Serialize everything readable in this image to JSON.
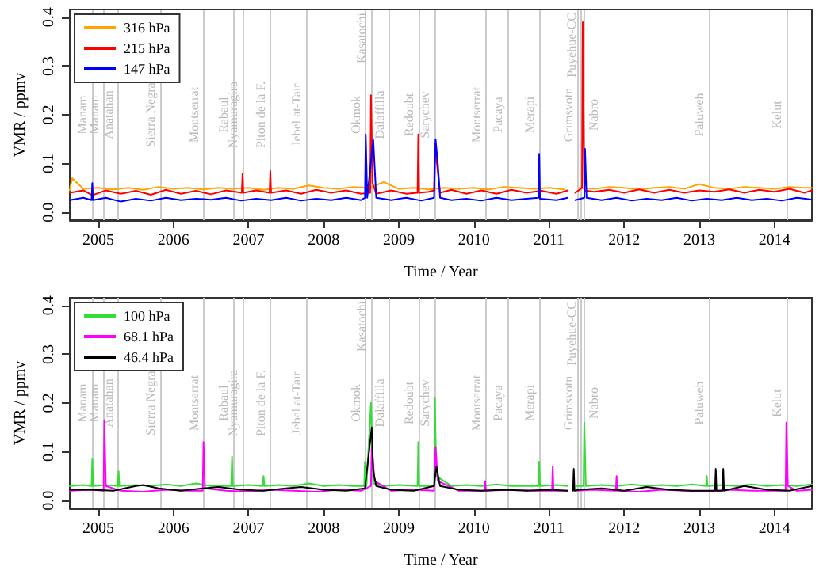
{
  "chart_data": [
    {
      "type": "line",
      "xlabel": "Time / Year",
      "ylabel": "VMR / ppmv",
      "legend": "top left",
      "xlim": [
        2004.62,
        2014.5
      ],
      "xticks": [
        2005,
        2006,
        2007,
        2008,
        2009,
        2010,
        2011,
        2012,
        2013,
        2014
      ],
      "ylim": [
        -0.016,
        0.416
      ],
      "yticks": [
        {
          "value": 0,
          "label": "0.0"
        },
        {
          "value": 0.1,
          "label": "0.1"
        },
        {
          "value": 0.2,
          "label": "0.2"
        },
        {
          "value": 0.3,
          "label": "0.3"
        },
        {
          "value": 0.4,
          "label": "0.4"
        }
      ],
      "series": [
        {
          "name": "316 hPa",
          "color": "#ffa500",
          "x": [
            2004.62,
            2004.65,
            2004.8,
            2005.0,
            2005.2,
            2005.4,
            2005.6,
            2005.8,
            2006.0,
            2006.2,
            2006.4,
            2006.6,
            2006.8,
            2007.0,
            2007.2,
            2007.4,
            2007.6,
            2007.8,
            2008.0,
            2008.2,
            2008.4,
            2008.6,
            2008.8,
            2009.0,
            2009.2,
            2009.4,
            2009.6,
            2009.8,
            2010.0,
            2010.2,
            2010.4,
            2010.6,
            2010.8,
            2011.0,
            2011.2,
            2011.3,
            2011.4,
            2011.6,
            2011.8,
            2012.0,
            2012.2,
            2012.4,
            2012.6,
            2012.8,
            2013.0,
            2013.2,
            2013.4,
            2013.6,
            2013.8,
            2014.0,
            2014.2,
            2014.4,
            2014.5
          ],
          "values": [
            0.045,
            0.07,
            0.048,
            0.05,
            0.047,
            0.05,
            0.046,
            0.052,
            0.048,
            0.05,
            0.047,
            0.05,
            0.048,
            0.05,
            0.046,
            0.05,
            0.048,
            0.055,
            0.05,
            0.048,
            0.052,
            0.05,
            0.062,
            0.048,
            0.05,
            0.047,
            0.05,
            0.048,
            0.05,
            0.047,
            0.052,
            0.05,
            0.048,
            0.05,
            0.047,
            null,
            0.05,
            0.048,
            0.052,
            0.05,
            0.047,
            0.05,
            0.052,
            0.048,
            0.058,
            0.05,
            0.048,
            0.052,
            0.05,
            0.048,
            0.052,
            0.05,
            0.05
          ]
        },
        {
          "name": "215 hPa",
          "color": "#ff0000",
          "x": [
            2004.62,
            2004.8,
            2004.92,
            2005.1,
            2005.3,
            2005.5,
            2005.7,
            2005.9,
            2006.1,
            2006.3,
            2006.5,
            2006.7,
            2006.91,
            2006.92,
            2006.93,
            2007.1,
            2007.28,
            2007.29,
            2007.3,
            2007.5,
            2007.7,
            2007.9,
            2008.1,
            2008.3,
            2008.5,
            2008.62,
            2008.63,
            2008.65,
            2008.7,
            2008.9,
            2009.1,
            2009.25,
            2009.26,
            2009.27,
            2009.4,
            2009.47,
            2009.48,
            2009.55,
            2009.7,
            2009.9,
            2010.1,
            2010.3,
            2010.5,
            2010.7,
            2010.9,
            2011.1,
            2011.25,
            2011.3,
            2011.35,
            2011.44,
            2011.45,
            2011.47,
            2011.6,
            2011.8,
            2012.0,
            2012.2,
            2012.4,
            2012.6,
            2012.8,
            2013.0,
            2013.2,
            2013.4,
            2013.6,
            2013.8,
            2014.0,
            2014.2,
            2014.4,
            2014.5
          ],
          "values": [
            0.04,
            0.045,
            0.035,
            0.045,
            0.038,
            0.044,
            0.036,
            0.046,
            0.038,
            0.044,
            0.037,
            0.045,
            0.04,
            0.08,
            0.04,
            0.045,
            0.04,
            0.085,
            0.04,
            0.045,
            0.038,
            0.046,
            0.04,
            0.045,
            0.038,
            0.04,
            0.24,
            0.06,
            0.038,
            0.045,
            0.038,
            0.04,
            0.16,
            0.04,
            0.042,
            0.045,
            0.14,
            0.04,
            0.046,
            0.038,
            0.045,
            0.038,
            0.046,
            0.04,
            0.044,
            0.038,
            0.045,
            null,
            0.04,
            0.05,
            0.39,
            0.045,
            0.042,
            0.046,
            0.04,
            0.047,
            0.04,
            0.046,
            0.04,
            0.045,
            0.042,
            0.047,
            0.04,
            0.046,
            0.042,
            0.048,
            0.04,
            0.045
          ]
        },
        {
          "name": "147 hPa",
          "color": "#0000ff",
          "x": [
            2004.62,
            2004.8,
            2004.91,
            2004.92,
            2004.93,
            2005.1,
            2005.3,
            2005.5,
            2005.7,
            2005.9,
            2006.1,
            2006.3,
            2006.5,
            2006.7,
            2006.9,
            2007.1,
            2007.3,
            2007.5,
            2007.7,
            2007.9,
            2008.1,
            2008.3,
            2008.5,
            2008.55,
            2008.56,
            2008.58,
            2008.66,
            2008.7,
            2008.9,
            2009.1,
            2009.3,
            2009.47,
            2009.49,
            2009.52,
            2009.55,
            2009.7,
            2009.9,
            2010.1,
            2010.3,
            2010.5,
            2010.7,
            2010.86,
            2010.87,
            2010.88,
            2011.1,
            2011.25,
            2011.3,
            2011.35,
            2011.47,
            2011.48,
            2011.5,
            2011.7,
            2011.9,
            2012.1,
            2012.3,
            2012.5,
            2012.7,
            2012.9,
            2013.1,
            2013.3,
            2013.5,
            2013.7,
            2013.9,
            2014.1,
            2014.3,
            2014.5
          ],
          "values": [
            0.025,
            0.03,
            0.025,
            0.06,
            0.025,
            0.03,
            0.022,
            0.028,
            0.024,
            0.03,
            0.025,
            0.028,
            0.026,
            0.03,
            0.024,
            0.028,
            0.025,
            0.03,
            0.024,
            0.028,
            0.025,
            0.03,
            0.025,
            0.03,
            0.16,
            0.03,
            0.15,
            0.03,
            0.025,
            0.03,
            0.024,
            0.03,
            0.15,
            0.1,
            0.03,
            0.025,
            0.028,
            0.024,
            0.03,
            0.025,
            0.028,
            0.03,
            0.12,
            0.028,
            0.025,
            0.03,
            null,
            0.025,
            0.03,
            0.13,
            0.03,
            0.025,
            0.03,
            0.024,
            0.028,
            0.025,
            0.03,
            0.024,
            0.028,
            0.025,
            0.03,
            0.025,
            0.028,
            0.024,
            0.03,
            0.026
          ]
        }
      ],
      "ref_lines": [
        {
          "axis": "x",
          "value": 2004.92,
          "label": "Manam",
          "color": "#cccccc"
        },
        {
          "axis": "x",
          "value": 2005.07,
          "label": "Manam",
          "color": "#cccccc"
        },
        {
          "axis": "x",
          "value": 2005.26,
          "label": "Anatahan",
          "color": "#cccccc"
        },
        {
          "axis": "x",
          "value": 2005.82,
          "label": "Sierra Negra",
          "color": "#cccccc"
        },
        {
          "axis": "x",
          "value": 2006.4,
          "label": "Montserrat",
          "color": "#cccccc"
        },
        {
          "axis": "x",
          "value": 2006.79,
          "label": "Rabaul",
          "color": "#cccccc"
        },
        {
          "axis": "x",
          "value": 2006.92,
          "label": "Nyamuragira",
          "color": "#cccccc"
        },
        {
          "axis": "x",
          "value": 2007.29,
          "label": "Piton de la F.",
          "color": "#cccccc"
        },
        {
          "axis": "x",
          "value": 2007.77,
          "label": "Jebel at-Tair",
          "color": "#cccccc"
        },
        {
          "axis": "x",
          "value": 2008.56,
          "label": "Okmok",
          "color": "#cccccc"
        },
        {
          "axis": "x",
          "value": 2008.63,
          "label": "Kasatochi",
          "color": "#cccccc"
        },
        {
          "axis": "x",
          "value": 2008.87,
          "label": "Dalaffilla",
          "color": "#cccccc"
        },
        {
          "axis": "x",
          "value": 2009.26,
          "label": "Redoubt",
          "color": "#cccccc"
        },
        {
          "axis": "x",
          "value": 2009.48,
          "label": "Sarychev",
          "color": "#cccccc"
        },
        {
          "axis": "x",
          "value": 2010.16,
          "label": "Montserrat",
          "color": "#cccccc"
        },
        {
          "axis": "x",
          "value": 2010.45,
          "label": "Pacaya",
          "color": "#cccccc"
        },
        {
          "axis": "x",
          "value": 2010.87,
          "label": "Merapi",
          "color": "#cccccc"
        },
        {
          "axis": "x",
          "value": 2011.39,
          "label": "Grimsvotn",
          "color": "#cccccc"
        },
        {
          "axis": "x",
          "value": 2011.43,
          "label": "Puyehue-CC",
          "color": "#cccccc"
        },
        {
          "axis": "x",
          "value": 2011.47,
          "label": "Nabro",
          "color": "#cccccc"
        },
        {
          "axis": "x",
          "value": 2013.13,
          "label": "Paluweh",
          "color": "#cccccc"
        },
        {
          "axis": "x",
          "value": 2014.16,
          "label": "Kelut",
          "color": "#cccccc"
        }
      ]
    },
    {
      "type": "line",
      "xlabel": "Time / Year",
      "ylabel": "VMR / ppmv",
      "legend": "top left",
      "xlim": [
        2004.62,
        2014.5
      ],
      "xticks": [
        2005,
        2006,
        2007,
        2008,
        2009,
        2010,
        2011,
        2012,
        2013,
        2014
      ],
      "ylim": [
        -0.016,
        0.416
      ],
      "yticks": [
        {
          "value": 0,
          "label": "0.0"
        },
        {
          "value": 0.1,
          "label": "0.1"
        },
        {
          "value": 0.2,
          "label": "0.2"
        },
        {
          "value": 0.3,
          "label": "0.3"
        },
        {
          "value": 0.4,
          "label": "0.4"
        }
      ],
      "series": [
        {
          "name": "100 hPa",
          "color": "#33dd33",
          "x": [
            2004.62,
            2004.8,
            2004.91,
            2004.92,
            2004.93,
            2005.1,
            2005.26,
            2005.27,
            2005.28,
            2005.5,
            2005.7,
            2005.9,
            2006.1,
            2006.3,
            2006.5,
            2006.77,
            2006.78,
            2006.79,
            2007.0,
            2007.19,
            2007.2,
            2007.21,
            2007.4,
            2007.6,
            2007.8,
            2008.0,
            2008.2,
            2008.4,
            2008.54,
            2008.55,
            2008.57,
            2008.63,
            2008.66,
            2008.8,
            2009.0,
            2009.25,
            2009.26,
            2009.27,
            2009.47,
            2009.48,
            2009.5,
            2009.7,
            2009.9,
            2010.1,
            2010.3,
            2010.5,
            2010.86,
            2010.87,
            2010.88,
            2011.1,
            2011.25,
            2011.3,
            2011.36,
            2011.46,
            2011.47,
            2011.49,
            2011.7,
            2011.9,
            2012.1,
            2012.3,
            2012.5,
            2012.7,
            2012.9,
            2013.09,
            2013.1,
            2013.11,
            2013.3,
            2013.5,
            2013.7,
            2013.9,
            2014.1,
            2014.3,
            2014.5
          ],
          "values": [
            0.03,
            0.032,
            0.03,
            0.085,
            0.03,
            0.032,
            0.03,
            0.06,
            0.03,
            0.032,
            0.03,
            0.033,
            0.03,
            0.035,
            0.03,
            0.03,
            0.09,
            0.03,
            0.032,
            0.03,
            0.05,
            0.03,
            0.032,
            0.03,
            0.035,
            0.03,
            0.032,
            0.03,
            0.03,
            0.08,
            0.03,
            0.2,
            0.035,
            0.03,
            0.032,
            0.03,
            0.12,
            0.03,
            0.03,
            0.21,
            0.05,
            0.03,
            0.032,
            0.03,
            0.033,
            0.03,
            0.03,
            0.08,
            0.03,
            0.032,
            0.03,
            null,
            0.03,
            0.03,
            0.16,
            0.03,
            0.032,
            0.03,
            0.033,
            0.03,
            0.032,
            0.03,
            0.033,
            0.03,
            0.05,
            0.03,
            0.032,
            0.03,
            0.033,
            0.03,
            0.032,
            0.03,
            0.033
          ]
        },
        {
          "name": "68.1 hPa",
          "color": "#ff00ff",
          "x": [
            2004.62,
            2004.9,
            2005.07,
            2005.08,
            2005.1,
            2005.3,
            2005.6,
            2005.9,
            2006.2,
            2006.39,
            2006.4,
            2006.42,
            2006.7,
            2007.0,
            2007.3,
            2007.6,
            2007.9,
            2008.2,
            2008.5,
            2008.63,
            2008.64,
            2008.68,
            2008.9,
            2009.2,
            2009.47,
            2009.49,
            2009.52,
            2009.8,
            2010.14,
            2010.15,
            2010.16,
            2010.5,
            2010.8,
            2011.04,
            2011.05,
            2011.06,
            2011.25,
            2011.3,
            2011.36,
            2011.6,
            2011.89,
            2011.9,
            2011.91,
            2012.2,
            2012.5,
            2012.8,
            2013.1,
            2013.4,
            2013.7,
            2014.0,
            2014.15,
            2014.16,
            2014.18,
            2014.3,
            2014.5
          ],
          "values": [
            0.02,
            0.022,
            0.02,
            0.165,
            0.03,
            0.02,
            0.018,
            0.022,
            0.02,
            0.02,
            0.12,
            0.025,
            0.02,
            0.018,
            0.022,
            0.02,
            0.018,
            0.022,
            0.02,
            0.03,
            0.11,
            0.04,
            0.02,
            0.022,
            0.02,
            0.11,
            0.04,
            0.02,
            0.02,
            0.04,
            0.02,
            0.022,
            0.02,
            0.02,
            0.07,
            0.02,
            0.02,
            null,
            0.02,
            0.022,
            0.02,
            0.05,
            0.02,
            0.018,
            0.022,
            0.02,
            0.018,
            0.022,
            0.02,
            0.02,
            0.02,
            0.16,
            0.03,
            0.02,
            0.022
          ]
        },
        {
          "name": "46.4 hPa",
          "color": "#000000",
          "x": [
            2004.62,
            2004.9,
            2005.2,
            2005.5,
            2005.6,
            2005.8,
            2006.1,
            2006.4,
            2006.6,
            2006.9,
            2007.2,
            2007.5,
            2007.7,
            2008.0,
            2008.3,
            2008.55,
            2008.64,
            2008.66,
            2008.7,
            2008.9,
            2009.2,
            2009.47,
            2009.5,
            2009.55,
            2009.8,
            2010.1,
            2010.4,
            2010.7,
            2011.0,
            2011.25,
            2011.3,
            2011.32,
            2011.33,
            2011.34,
            2011.4,
            2011.7,
            2012.0,
            2012.3,
            2012.6,
            2012.9,
            2013.21,
            2013.22,
            2013.23,
            2013.31,
            2013.32,
            2013.33,
            2013.6,
            2013.9,
            2014.2,
            2014.5
          ],
          "values": [
            0.022,
            0.022,
            0.02,
            0.03,
            0.032,
            0.025,
            0.02,
            0.025,
            0.028,
            0.022,
            0.02,
            0.025,
            0.028,
            0.022,
            0.02,
            0.025,
            0.15,
            0.06,
            0.03,
            0.022,
            0.02,
            0.03,
            0.07,
            0.03,
            0.022,
            0.02,
            0.022,
            0.02,
            0.022,
            0.02,
            null,
            0.02,
            0.065,
            0.02,
            0.022,
            0.025,
            0.02,
            0.028,
            0.022,
            0.02,
            0.02,
            0.065,
            0.02,
            0.02,
            0.065,
            0.02,
            0.03,
            0.022,
            0.02,
            0.03
          ]
        }
      ],
      "ref_lines": [
        {
          "axis": "x",
          "value": 2004.92,
          "label": "Manam",
          "color": "#cccccc"
        },
        {
          "axis": "x",
          "value": 2005.07,
          "label": "Manam",
          "color": "#cccccc"
        },
        {
          "axis": "x",
          "value": 2005.26,
          "label": "Anatahan",
          "color": "#cccccc"
        },
        {
          "axis": "x",
          "value": 2005.82,
          "label": "Sierra Negra",
          "color": "#cccccc"
        },
        {
          "axis": "x",
          "value": 2006.4,
          "label": "Montserrat",
          "color": "#cccccc"
        },
        {
          "axis": "x",
          "value": 2006.79,
          "label": "Rabaul",
          "color": "#cccccc"
        },
        {
          "axis": "x",
          "value": 2006.92,
          "label": "Nyamuragira",
          "color": "#cccccc"
        },
        {
          "axis": "x",
          "value": 2007.29,
          "label": "Piton de la F.",
          "color": "#cccccc"
        },
        {
          "axis": "x",
          "value": 2007.77,
          "label": "Jebel at-Tair",
          "color": "#cccccc"
        },
        {
          "axis": "x",
          "value": 2008.56,
          "label": "Okmok",
          "color": "#cccccc"
        },
        {
          "axis": "x",
          "value": 2008.63,
          "label": "Kasatochi",
          "color": "#cccccc"
        },
        {
          "axis": "x",
          "value": 2008.87,
          "label": "Dalaffilla",
          "color": "#cccccc"
        },
        {
          "axis": "x",
          "value": 2009.26,
          "label": "Redoubt",
          "color": "#cccccc"
        },
        {
          "axis": "x",
          "value": 2009.48,
          "label": "Sarychev",
          "color": "#cccccc"
        },
        {
          "axis": "x",
          "value": 2010.16,
          "label": "Montserrat",
          "color": "#cccccc"
        },
        {
          "axis": "x",
          "value": 2010.45,
          "label": "Pacaya",
          "color": "#cccccc"
        },
        {
          "axis": "x",
          "value": 2010.87,
          "label": "Merapi",
          "color": "#cccccc"
        },
        {
          "axis": "x",
          "value": 2011.39,
          "label": "Grimsvotn",
          "color": "#cccccc"
        },
        {
          "axis": "x",
          "value": 2011.43,
          "label": "Puyehue-CC",
          "color": "#cccccc"
        },
        {
          "axis": "x",
          "value": 2011.47,
          "label": "Nabro",
          "color": "#cccccc"
        },
        {
          "axis": "x",
          "value": 2013.13,
          "label": "Paluweh",
          "color": "#cccccc"
        },
        {
          "axis": "x",
          "value": 2014.16,
          "label": "Kelut",
          "color": "#cccccc"
        }
      ]
    }
  ]
}
